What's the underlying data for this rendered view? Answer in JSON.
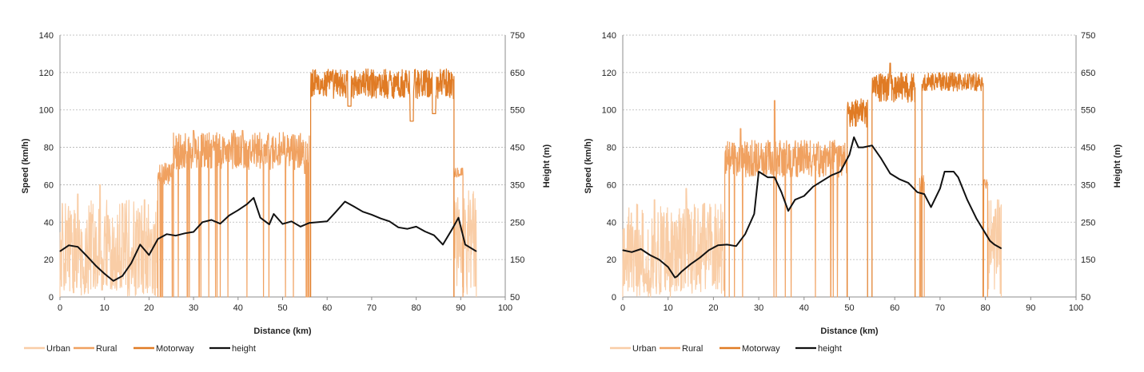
{
  "colors": {
    "urban": "#f9cda6",
    "rural": "#f0a160",
    "motorway": "#e07b24",
    "height": "#111111",
    "grid": "#b3b3b3",
    "axis": "#8c8c8c"
  },
  "chart_data": [
    {
      "type": "line",
      "title": "",
      "xlabel": "Distance (km)",
      "ylabel": "Speed (km/h)",
      "y2label": "Height (m)",
      "xlim": [
        0,
        100
      ],
      "ylim": [
        0,
        140
      ],
      "y2lim": [
        50,
        750
      ],
      "xticks": [
        "0",
        "10",
        "20",
        "30",
        "40",
        "50",
        "60",
        "70",
        "80",
        "90",
        "100"
      ],
      "yticks": [
        "0",
        "20",
        "40",
        "60",
        "80",
        "100",
        "120",
        "140"
      ],
      "y2ticks": [
        "50",
        "150",
        "250",
        "350",
        "450",
        "550",
        "650",
        "750"
      ],
      "grid": true,
      "legend_position": "bottom-left",
      "series": [
        {
          "name": "Urban",
          "axis": "left",
          "segments": [
            {
              "x_range": [
                0,
                22
              ],
              "mean": 28,
              "amp": 24,
              "note_peaks": [
                [
                  4,
                  55
                ],
                [
                  9,
                  60
                ],
                [
                  14,
                  50
                ],
                [
                  19,
                  52
                ]
              ]
            },
            {
              "x_range": [
                88.5,
                93.5
              ],
              "mean": 35,
              "amp": 22
            }
          ]
        },
        {
          "name": "Rural",
          "axis": "left",
          "segments": [
            {
              "x_range": [
                22,
                25.5
              ],
              "mean": 66,
              "amp": 6
            },
            {
              "x_range": [
                25.5,
                56
              ],
              "mean": 78,
              "amp": 10,
              "note_peaks": [
                [
                  30,
                  89
                ],
                [
                  39,
                  89
                ],
                [
                  41,
                  89
                ],
                [
                  50,
                  77
                ],
                [
                  55,
                  66
                ]
              ]
            },
            {
              "x_range": [
                88.5,
                90.5
              ],
              "mean": 67,
              "amp": 3
            }
          ]
        },
        {
          "name": "Motorway",
          "axis": "left",
          "segments": [
            {
              "x_range": [
                56.3,
                88.5
              ],
              "mean": 114,
              "amp": 8,
              "dips": [
                [
                  65,
                  102
                ],
                [
                  79,
                  94
                ],
                [
                  84,
                  98
                ]
              ]
            }
          ]
        },
        {
          "name": "height",
          "axis": "right",
          "x": [
            0,
            2,
            4,
            6,
            8,
            10,
            12,
            14,
            16,
            18,
            20,
            22,
            24,
            26,
            28,
            30,
            32,
            34,
            36,
            38,
            40,
            42,
            43.5,
            45,
            47,
            48,
            50,
            52,
            54,
            56,
            58,
            60,
            62,
            64,
            66,
            68,
            70,
            72,
            74,
            76,
            78,
            80,
            82,
            84,
            86,
            88,
            89.5,
            91,
            93.5
          ],
          "y": [
            172,
            188,
            184,
            160,
            134,
            112,
            93,
            106,
            140,
            190,
            162,
            205,
            218,
            214,
            220,
            224,
            250,
            256,
            246,
            268,
            282,
            298,
            315,
            262,
            244,
            272,
            245,
            252,
            238,
            248,
            250,
            252,
            278,
            305,
            292,
            278,
            270,
            260,
            252,
            236,
            232,
            238,
            225,
            215,
            190,
            230,
            262,
            190,
            172
          ]
        }
      ]
    },
    {
      "type": "line",
      "title": "",
      "xlabel": "Distance (km)",
      "ylabel": "Speed (km/h)",
      "y2label": "Height (m)",
      "xlim": [
        0,
        100
      ],
      "ylim": [
        0,
        140
      ],
      "y2lim": [
        50,
        750
      ],
      "xticks": [
        "0",
        "10",
        "20",
        "30",
        "40",
        "50",
        "60",
        "70",
        "80",
        "90",
        "100"
      ],
      "yticks": [
        "0",
        "20",
        "40",
        "60",
        "80",
        "100",
        "120",
        "140"
      ],
      "y2ticks": [
        "50",
        "150",
        "250",
        "350",
        "450",
        "550",
        "650",
        "750"
      ],
      "grid": true,
      "legend_position": "bottom-left",
      "series": [
        {
          "name": "Urban",
          "axis": "left",
          "segments": [
            {
              "x_range": [
                0,
                22.5
              ],
              "mean": 26,
              "amp": 24,
              "note_peaks": [
                [
                  7,
                  52
                ],
                [
                  14,
                  58
                ],
                [
                  18,
                  50
                ]
              ]
            },
            {
              "x_range": [
                80.5,
                83.5
              ],
              "mean": 32,
              "amp": 20
            }
          ]
        },
        {
          "name": "Rural",
          "axis": "left",
          "segments": [
            {
              "x_range": [
                22.5,
                49.5
              ],
              "mean": 74,
              "amp": 10,
              "note_peaks": [
                [
                  26,
                  90
                ],
                [
                  33.5,
                  105
                ],
                [
                  43,
                  80
                ],
                [
                  47,
                  77
                ]
              ]
            },
            {
              "x_range": [
                65.5,
                66.5
              ],
              "mean": 60,
              "amp": 5
            },
            {
              "x_range": [
                79.5,
                80.5
              ],
              "mean": 60,
              "amp": 3
            }
          ]
        },
        {
          "name": "Motorway",
          "axis": "left",
          "segments": [
            {
              "x_range": [
                49.5,
                54
              ],
              "mean": 98,
              "amp": 8
            },
            {
              "x_range": [
                55,
                64.5
              ],
              "mean": 112,
              "amp": 8,
              "note_peaks": [
                [
                  59,
                  125
                ]
              ]
            },
            {
              "x_range": [
                66,
                79.5
              ],
              "mean": 115,
              "amp": 5
            }
          ]
        },
        {
          "name": "height",
          "axis": "right",
          "x": [
            0,
            2,
            4,
            6,
            8,
            10,
            11.5,
            12,
            13,
            15,
            17,
            19,
            21,
            23,
            25,
            27,
            29,
            30,
            32,
            33.5,
            35,
            36.5,
            38,
            40,
            42,
            44,
            46,
            48,
            50,
            51,
            52,
            53,
            55,
            57,
            59,
            61,
            63,
            65,
            66.5,
            68,
            70,
            71,
            73,
            74,
            76,
            78,
            80,
            81,
            82,
            83.5
          ],
          "y": [
            175,
            170,
            178,
            162,
            150,
            130,
            102,
            105,
            118,
            138,
            155,
            175,
            188,
            190,
            186,
            218,
            272,
            385,
            370,
            370,
            330,
            280,
            310,
            320,
            345,
            360,
            375,
            385,
            430,
            477,
            450,
            450,
            455,
            420,
            380,
            365,
            355,
            330,
            325,
            290,
            340,
            385,
            385,
            370,
            310,
            260,
            220,
            200,
            190,
            180
          ]
        }
      ]
    }
  ],
  "legends": [
    [
      {
        "label": "Urban",
        "color_key": "urban"
      },
      {
        "label": "Rural",
        "color_key": "rural"
      },
      {
        "label": "Motorway",
        "color_key": "motorway"
      },
      {
        "label": "height",
        "color_key": "height"
      }
    ],
    [
      {
        "label": "Urban",
        "color_key": "urban"
      },
      {
        "label": "Rural",
        "color_key": "rural"
      },
      {
        "label": "Motorway",
        "color_key": "motorway"
      },
      {
        "label": "height",
        "color_key": "height"
      }
    ]
  ]
}
